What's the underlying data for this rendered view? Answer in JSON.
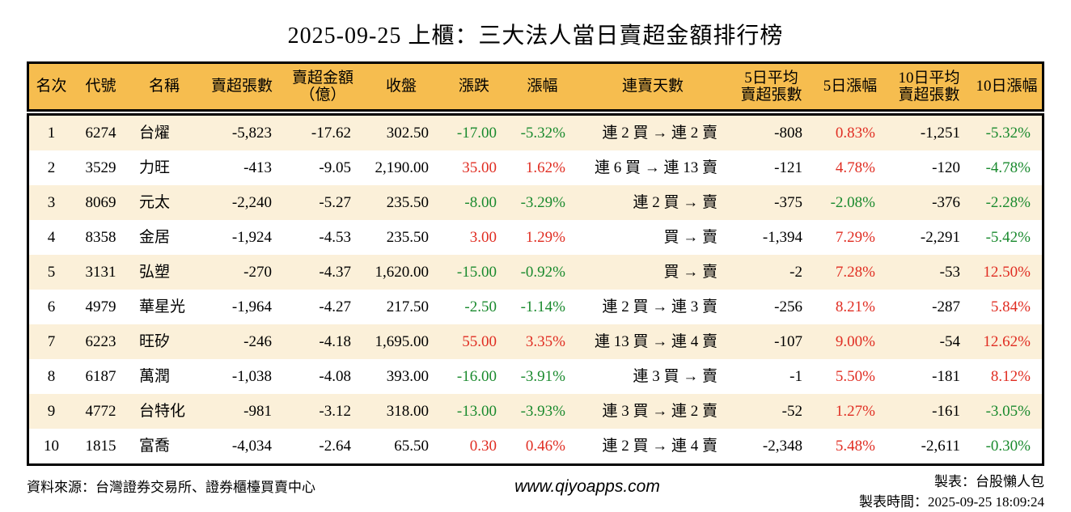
{
  "title": "2025-09-25 上櫃：三大法人當日賣超金額排行榜",
  "colors": {
    "up_red": "#e02d22",
    "down_green": "#1a8a2e",
    "header_bg": "#f6bd4f",
    "row_stripe_bg": "#fbf0d9",
    "border": "#000000"
  },
  "chart_data": {
    "type": "table",
    "title": "2025-09-25 上櫃：三大法人當日賣超金額排行榜",
    "columns": [
      "名次",
      "代號",
      "名稱",
      "賣超張數",
      "賣超金額\n（億）",
      "收盤",
      "漲跌",
      "漲幅",
      "連賣天數",
      "5日平均\n賣超張數",
      "5日漲幅",
      "10日平均\n賣超張數",
      "10日漲幅"
    ],
    "rows": [
      [
        "1",
        "6274",
        "台燿",
        "-5,823",
        "-17.62",
        "302.50",
        "-17.00",
        "-5.32%",
        "連 2 買 → 連 2 賣",
        "-808",
        "0.83%",
        "-1,251",
        "-5.32%"
      ],
      [
        "2",
        "3529",
        "力旺",
        "-413",
        "-9.05",
        "2,190.00",
        "35.00",
        "1.62%",
        "連 6 買 → 連 13 賣",
        "-121",
        "4.78%",
        "-120",
        "-4.78%"
      ],
      [
        "3",
        "8069",
        "元太",
        "-2,240",
        "-5.27",
        "235.50",
        "-8.00",
        "-3.29%",
        "連 2 買 → 賣",
        "-375",
        "-2.08%",
        "-376",
        "-2.28%"
      ],
      [
        "4",
        "8358",
        "金居",
        "-1,924",
        "-4.53",
        "235.50",
        "3.00",
        "1.29%",
        "買 → 賣",
        "-1,394",
        "7.29%",
        "-2,291",
        "-5.42%"
      ],
      [
        "5",
        "3131",
        "弘塑",
        "-270",
        "-4.37",
        "1,620.00",
        "-15.00",
        "-0.92%",
        "買 → 賣",
        "-2",
        "7.28%",
        "-53",
        "12.50%"
      ],
      [
        "6",
        "4979",
        "華星光",
        "-1,964",
        "-4.27",
        "217.50",
        "-2.50",
        "-1.14%",
        "連 2 買 → 連 3 賣",
        "-256",
        "8.21%",
        "-287",
        "5.84%"
      ],
      [
        "7",
        "6223",
        "旺矽",
        "-246",
        "-4.18",
        "1,695.00",
        "55.00",
        "3.35%",
        "連 13 買 → 連 4 賣",
        "-107",
        "9.00%",
        "-54",
        "12.62%"
      ],
      [
        "8",
        "6187",
        "萬潤",
        "-1,038",
        "-4.08",
        "393.00",
        "-16.00",
        "-3.91%",
        "連 3 買 → 賣",
        "-1",
        "5.50%",
        "-181",
        "8.12%"
      ],
      [
        "9",
        "4772",
        "台特化",
        "-981",
        "-3.12",
        "318.00",
        "-13.00",
        "-3.93%",
        "連 3 買 → 連 2 賣",
        "-52",
        "1.27%",
        "-161",
        "-3.05%"
      ],
      [
        "10",
        "1815",
        "富喬",
        "-4,034",
        "-2.64",
        "65.50",
        "0.30",
        "0.46%",
        "連 2 買 → 連 4 賣",
        "-2,348",
        "5.48%",
        "-2,611",
        "-0.30%"
      ]
    ]
  },
  "footer": {
    "source": "資料來源：台灣證券交易所、證券櫃檯買賣中心",
    "website": "www.qiyoapps.com",
    "maker": "製表：台股懶人包",
    "made_time": "製表時間：2025-09-25 18:09:24"
  }
}
